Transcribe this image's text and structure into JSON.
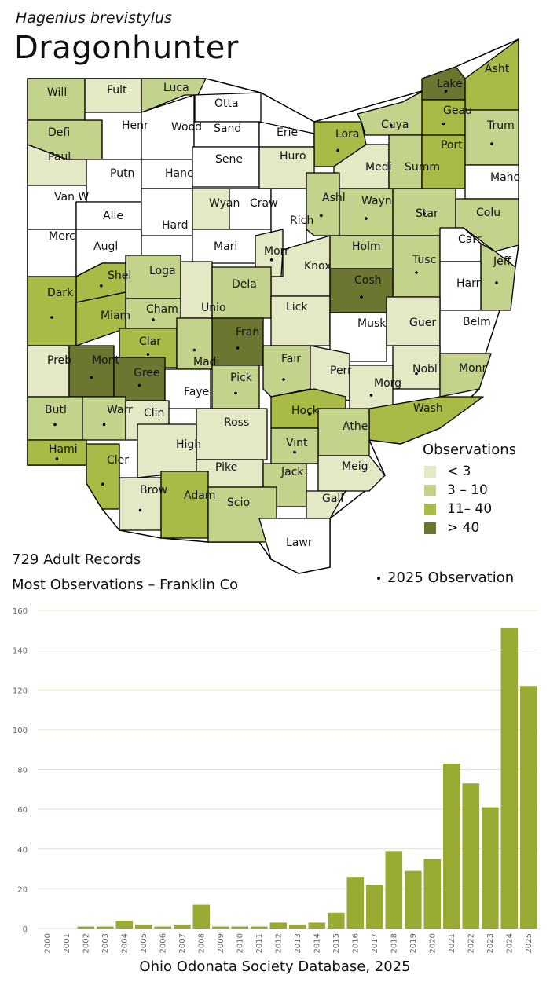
{
  "header": {
    "scientific_name": "Hagenius brevistylus",
    "common_name": "Dragonhunter"
  },
  "colors": {
    "none": "#ffffff",
    "lt3": "#e4e9c5",
    "r3_10": "#c4d38c",
    "r11_40": "#a8bb46",
    "gt40": "#6b7631",
    "bar": "#99aa32"
  },
  "legend": {
    "title": "Observations",
    "items": [
      {
        "label": "< 3",
        "color": "#e4e9c5"
      },
      {
        "label": "3 – 10",
        "color": "#c4d38c"
      },
      {
        "label": "11– 40",
        "color": "#a8bb46"
      },
      {
        "label": "> 40",
        "color": "#6b7631"
      }
    ]
  },
  "stats": {
    "records": "729 Adult Records",
    "most": "Most Observations – Franklin Co"
  },
  "dot_legend": "2025  Observation",
  "footer": "Ohio Odonata Society Database, 2025",
  "counties": [
    {
      "name": "Will",
      "cat": "r3_10",
      "dot": false
    },
    {
      "name": "Fult",
      "cat": "lt3",
      "dot": false
    },
    {
      "name": "Luca",
      "cat": "r3_10",
      "dot": false
    },
    {
      "name": "Otta",
      "cat": "none",
      "dot": false
    },
    {
      "name": "Defi",
      "cat": "r3_10",
      "dot": false
    },
    {
      "name": "Henr",
      "cat": "none",
      "dot": false
    },
    {
      "name": "Wood",
      "cat": "none",
      "dot": false
    },
    {
      "name": "Sand",
      "cat": "none",
      "dot": false
    },
    {
      "name": "Erie",
      "cat": "none",
      "dot": false
    },
    {
      "name": "Lora",
      "cat": "r11_40",
      "dot": true
    },
    {
      "name": "Cuya",
      "cat": "r3_10",
      "dot": true
    },
    {
      "name": "Lake",
      "cat": "gt40",
      "dot": true
    },
    {
      "name": "Asht",
      "cat": "r11_40",
      "dot": false
    },
    {
      "name": "Geau",
      "cat": "r11_40",
      "dot": true
    },
    {
      "name": "Paul",
      "cat": "lt3",
      "dot": false
    },
    {
      "name": "Putn",
      "cat": "none",
      "dot": false
    },
    {
      "name": "Hanc",
      "cat": "none",
      "dot": false
    },
    {
      "name": "Sene",
      "cat": "none",
      "dot": false
    },
    {
      "name": "Huro",
      "cat": "lt3",
      "dot": false
    },
    {
      "name": "Medi",
      "cat": "lt3",
      "dot": false
    },
    {
      "name": "Summ",
      "cat": "r3_10",
      "dot": false
    },
    {
      "name": "Port",
      "cat": "r11_40",
      "dot": false
    },
    {
      "name": "Trum",
      "cat": "r3_10",
      "dot": true
    },
    {
      "name": "Van W",
      "cat": "none",
      "dot": false
    },
    {
      "name": "Alle",
      "cat": "none",
      "dot": false
    },
    {
      "name": "Hard",
      "cat": "none",
      "dot": false
    },
    {
      "name": "Wyan",
      "cat": "lt3",
      "dot": false
    },
    {
      "name": "Craw",
      "cat": "none",
      "dot": false
    },
    {
      "name": "Rich",
      "cat": "none",
      "dot": false
    },
    {
      "name": "Ashl",
      "cat": "r3_10",
      "dot": true
    },
    {
      "name": "Wayn",
      "cat": "r3_10",
      "dot": true
    },
    {
      "name": "Star",
      "cat": "r3_10",
      "dot": true
    },
    {
      "name": "Maho",
      "cat": "none",
      "dot": false
    },
    {
      "name": "Colu",
      "cat": "r3_10",
      "dot": false
    },
    {
      "name": "Merc",
      "cat": "none",
      "dot": false
    },
    {
      "name": "Augl",
      "cat": "none",
      "dot": false
    },
    {
      "name": "Mari",
      "cat": "none",
      "dot": false
    },
    {
      "name": "Morr",
      "cat": "lt3",
      "dot": true
    },
    {
      "name": "Knox",
      "cat": "lt3",
      "dot": false
    },
    {
      "name": "Holm",
      "cat": "r3_10",
      "dot": false
    },
    {
      "name": "Tusc",
      "cat": "r3_10",
      "dot": true
    },
    {
      "name": "Carr",
      "cat": "none",
      "dot": false
    },
    {
      "name": "Jeff",
      "cat": "r3_10",
      "dot": true
    },
    {
      "name": "Harr",
      "cat": "none",
      "dot": false
    },
    {
      "name": "Shel",
      "cat": "r11_40",
      "dot": true
    },
    {
      "name": "Loga",
      "cat": "r3_10",
      "dot": false
    },
    {
      "name": "Unio",
      "cat": "lt3",
      "dot": false
    },
    {
      "name": "Dela",
      "cat": "r3_10",
      "dot": false
    },
    {
      "name": "Lick",
      "cat": "lt3",
      "dot": false
    },
    {
      "name": "Cosh",
      "cat": "gt40",
      "dot": true
    },
    {
      "name": "Dark",
      "cat": "r11_40",
      "dot": true
    },
    {
      "name": "Miam",
      "cat": "r11_40",
      "dot": false
    },
    {
      "name": "Cham",
      "cat": "r3_10",
      "dot": true
    },
    {
      "name": "Fran",
      "cat": "gt40",
      "dot": true
    },
    {
      "name": "Musk",
      "cat": "none",
      "dot": false
    },
    {
      "name": "Guer",
      "cat": "lt3",
      "dot": false
    },
    {
      "name": "Belm",
      "cat": "none",
      "dot": false
    },
    {
      "name": "Clar",
      "cat": "r11_40",
      "dot": true
    },
    {
      "name": "Madi",
      "cat": "r3_10",
      "dot": true
    },
    {
      "name": "Preb",
      "cat": "lt3",
      "dot": false
    },
    {
      "name": "Mont",
      "cat": "gt40",
      "dot": true
    },
    {
      "name": "Gree",
      "cat": "gt40",
      "dot": true
    },
    {
      "name": "Fair",
      "cat": "r3_10",
      "dot": true
    },
    {
      "name": "Perr",
      "cat": "lt3",
      "dot": false
    },
    {
      "name": "Nobl",
      "cat": "lt3",
      "dot": true
    },
    {
      "name": "Monr",
      "cat": "r3_10",
      "dot": false
    },
    {
      "name": "Pick",
      "cat": "r3_10",
      "dot": true
    },
    {
      "name": "Faye",
      "cat": "none",
      "dot": false
    },
    {
      "name": "Morg",
      "cat": "lt3",
      "dot": true
    },
    {
      "name": "Butl",
      "cat": "r3_10",
      "dot": true
    },
    {
      "name": "Warr",
      "cat": "r3_10",
      "dot": true
    },
    {
      "name": "Clin",
      "cat": "lt3",
      "dot": false
    },
    {
      "name": "Hock",
      "cat": "r11_40",
      "dot": true
    },
    {
      "name": "Wash",
      "cat": "r11_40",
      "dot": false
    },
    {
      "name": "Ross",
      "cat": "lt3",
      "dot": false
    },
    {
      "name": "Athe",
      "cat": "r3_10",
      "dot": false
    },
    {
      "name": "Hami",
      "cat": "r11_40",
      "dot": true
    },
    {
      "name": "High",
      "cat": "lt3",
      "dot": false
    },
    {
      "name": "Vint",
      "cat": "r3_10",
      "dot": true
    },
    {
      "name": "Cler",
      "cat": "r11_40",
      "dot": true
    },
    {
      "name": "Pike",
      "cat": "lt3",
      "dot": false
    },
    {
      "name": "Jack",
      "cat": "r3_10",
      "dot": false
    },
    {
      "name": "Meig",
      "cat": "lt3",
      "dot": false
    },
    {
      "name": "Brow",
      "cat": "lt3",
      "dot": true
    },
    {
      "name": "Adam",
      "cat": "r11_40",
      "dot": false
    },
    {
      "name": "Scio",
      "cat": "r3_10",
      "dot": false
    },
    {
      "name": "Gall",
      "cat": "lt3",
      "dot": false
    },
    {
      "name": "Lawr",
      "cat": "none",
      "dot": false
    }
  ],
  "chart_data": {
    "type": "bar",
    "categories": [
      "2000",
      "2001",
      "2002",
      "2003",
      "2004",
      "2005",
      "2006",
      "2007",
      "2008",
      "2009",
      "2010",
      "2011",
      "2012",
      "2013",
      "2014",
      "2015",
      "2016",
      "2017",
      "2018",
      "2019",
      "2020",
      "2021",
      "2022",
      "2023",
      "2024",
      "2025"
    ],
    "values": [
      0,
      0,
      1,
      1,
      4,
      2,
      1,
      2,
      12,
      1,
      1,
      1,
      3,
      2,
      3,
      8,
      26,
      22,
      39,
      29,
      35,
      83,
      73,
      61,
      151,
      122
    ],
    "ylim": [
      0,
      160
    ],
    "yticks": [
      0,
      20,
      40,
      60,
      80,
      100,
      120,
      140,
      160
    ],
    "grid": true,
    "xlabel": "",
    "ylabel": ""
  }
}
